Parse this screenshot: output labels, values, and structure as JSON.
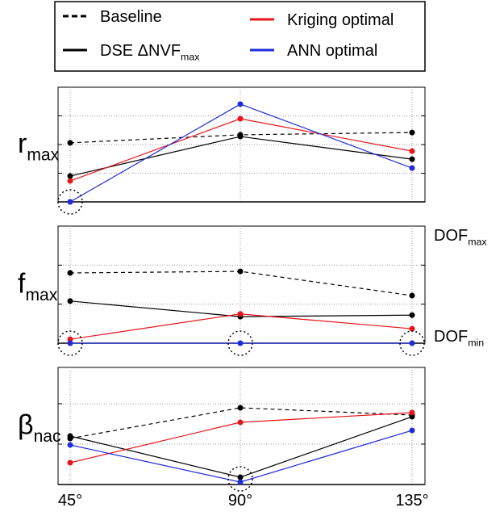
{
  "chart_data": [
    {
      "type": "line",
      "ylabel": "r",
      "ylabel_sub": "max",
      "ylim": [
        0,
        4
      ],
      "yticks": [
        1,
        2,
        3
      ],
      "grid": true,
      "series": [
        {
          "name": "Baseline",
          "color": "#000000",
          "dash": true,
          "values": [
            2.06,
            2.34,
            2.42
          ]
        },
        {
          "name": "DSE ΔNVF",
          "name_sub": "max",
          "color": "#000000",
          "dash": false,
          "values": [
            0.9,
            2.28,
            1.49
          ]
        },
        {
          "name": "Kriging optimal",
          "color": "#e8141b",
          "dash": false,
          "values": [
            0.73,
            2.9,
            1.77
          ]
        },
        {
          "name": "ANN optimal",
          "color": "#1f2bdc",
          "dash": false,
          "values": [
            0,
            3.41,
            1.18
          ]
        }
      ]
    },
    {
      "type": "line",
      "ylabel": "f",
      "ylabel_sub": "max",
      "ylim": [
        0,
        3
      ],
      "yticks": [
        1,
        2
      ],
      "grid": true,
      "annotations": [
        {
          "text": "DOF",
          "sub": "max"
        },
        {
          "text": "DOF",
          "sub": "min"
        }
      ],
      "series": [
        {
          "color": "#000000",
          "dash": true,
          "values": [
            1.8,
            1.84,
            1.22
          ]
        },
        {
          "color": "#000000",
          "dash": false,
          "values": [
            1.08,
            0.68,
            0.72
          ]
        },
        {
          "color": "#e8141b",
          "dash": false,
          "values": [
            0.1,
            0.75,
            0.37
          ]
        },
        {
          "color": "#1f2bdc",
          "dash": false,
          "values": [
            0,
            0,
            0
          ]
        }
      ]
    },
    {
      "type": "line",
      "ylabel": "β",
      "ylabel_sub": "nac",
      "ylim": [
        0,
        2.9
      ],
      "yticks": [
        1,
        2
      ],
      "grid": true,
      "categories": [
        "45°",
        "90°",
        "135°"
      ],
      "series": [
        {
          "color": "#000000",
          "dash": true,
          "values": [
            1.14,
            1.9,
            1.72
          ]
        },
        {
          "color": "#000000",
          "dash": false,
          "values": [
            1.2,
            0.18,
            1.68
          ]
        },
        {
          "color": "#e8141b",
          "dash": false,
          "values": [
            0.54,
            1.54,
            1.78
          ]
        },
        {
          "color": "#1f2bdc",
          "dash": false,
          "values": [
            0.98,
            0.06,
            1.34
          ]
        }
      ]
    }
  ]
}
